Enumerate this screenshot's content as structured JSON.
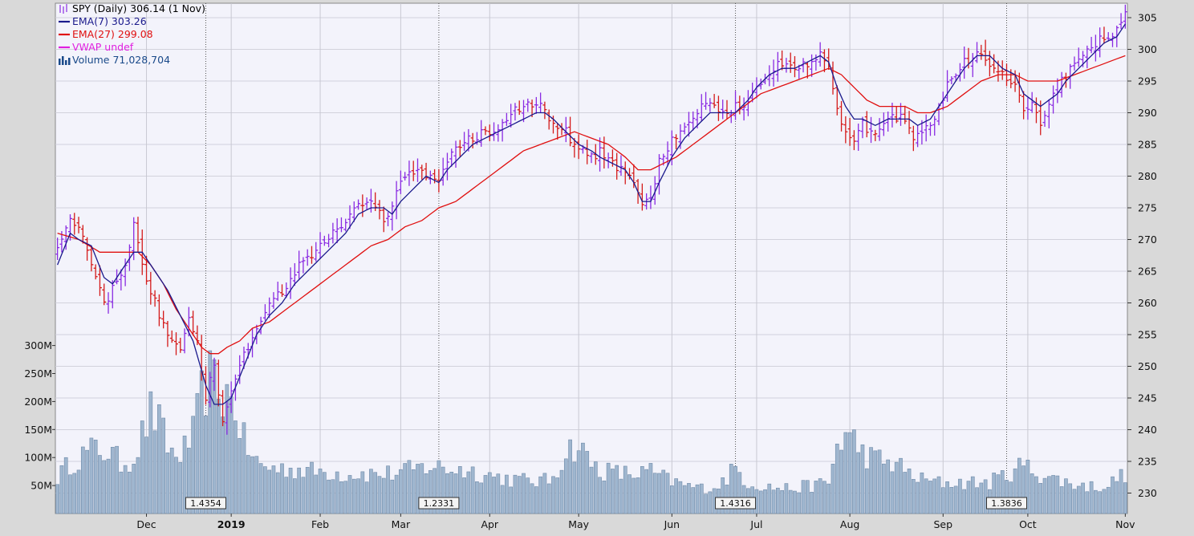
{
  "chart_data": {
    "type": "ohlc",
    "legend": [
      {
        "label": "SPY (Daily) 306.14 (1 Nov)",
        "color": "#000000",
        "icon": "ohlc-bars-icon"
      },
      {
        "label": "EMA(7) 303.26",
        "color": "#1a1a8c",
        "icon": "line-icon"
      },
      {
        "label": "EMA(27) 299.08",
        "color": "#e01010",
        "icon": "line-icon"
      },
      {
        "label": "VWAP undef",
        "color": "#e020e0",
        "icon": "line-icon"
      },
      {
        "label": "Volume 71,028,704",
        "color": "#1a4a8a",
        "icon": "volume-bars-icon"
      }
    ],
    "price_axis": {
      "ticks": [
        "305",
        "300",
        "295",
        "290",
        "285",
        "280",
        "275",
        "270",
        "265",
        "260",
        "255",
        "250",
        "245",
        "240",
        "235",
        "230"
      ],
      "range": [
        229,
        307
      ]
    },
    "volume_axis": {
      "ticks": [
        "300M",
        "250M",
        "200M",
        "150M",
        "100M",
        "50M"
      ],
      "range": [
        0,
        335
      ]
    },
    "x_axis": {
      "labels": [
        {
          "text": "Dec",
          "i": 21,
          "bold": false
        },
        {
          "text": "2019",
          "i": 41,
          "bold": true
        },
        {
          "text": "Feb",
          "i": 62,
          "bold": false
        },
        {
          "text": "Mar",
          "i": 81,
          "bold": false
        },
        {
          "text": "Apr",
          "i": 102,
          "bold": false
        },
        {
          "text": "May",
          "i": 123,
          "bold": false
        },
        {
          "text": "Jun",
          "i": 145,
          "bold": false
        },
        {
          "text": "Jul",
          "i": 165,
          "bold": false
        },
        {
          "text": "Aug",
          "i": 187,
          "bold": false
        },
        {
          "text": "Sep",
          "i": 209,
          "bold": false
        },
        {
          "text": "Oct",
          "i": 229,
          "bold": false
        },
        {
          "text": "Nov",
          "i": 252,
          "bold": false
        }
      ],
      "grid_i": [
        21,
        41,
        62,
        81,
        102,
        123,
        145,
        165,
        187,
        209,
        229
      ],
      "total_bars": 253
    },
    "annotations": [
      {
        "label": "1.4354",
        "i": 35
      },
      {
        "label": "1.2331",
        "i": 90
      },
      {
        "label": "1.4316",
        "i": 160
      },
      {
        "label": "1.3836",
        "i": 224
      }
    ],
    "close_anchors": [
      [
        0,
        268
      ],
      [
        3,
        274
      ],
      [
        5,
        272
      ],
      [
        8,
        266
      ],
      [
        11,
        260
      ],
      [
        15,
        264
      ],
      [
        18,
        272
      ],
      [
        20,
        266
      ],
      [
        23,
        260
      ],
      [
        26,
        255
      ],
      [
        29,
        252
      ],
      [
        31,
        258
      ],
      [
        33,
        254
      ],
      [
        35,
        245
      ],
      [
        37,
        250
      ],
      [
        39,
        242
      ],
      [
        41,
        246
      ],
      [
        44,
        252
      ],
      [
        47,
        256
      ],
      [
        50,
        260
      ],
      [
        53,
        262
      ],
      [
        56,
        265
      ],
      [
        59,
        267
      ],
      [
        62,
        269
      ],
      [
        65,
        271
      ],
      [
        68,
        273
      ],
      [
        71,
        275
      ],
      [
        74,
        276
      ],
      [
        77,
        273
      ],
      [
        79,
        275
      ],
      [
        81,
        279
      ],
      [
        84,
        281
      ],
      [
        87,
        280
      ],
      [
        90,
        279
      ],
      [
        92,
        283
      ],
      [
        95,
        285
      ],
      [
        98,
        286
      ],
      [
        101,
        287
      ],
      [
        104,
        288
      ],
      [
        107,
        290
      ],
      [
        110,
        291
      ],
      [
        113,
        292
      ],
      [
        115,
        290
      ],
      [
        117,
        288
      ],
      [
        120,
        287
      ],
      [
        123,
        284
      ],
      [
        126,
        283
      ],
      [
        128,
        284
      ],
      [
        131,
        282
      ],
      [
        134,
        281
      ],
      [
        136,
        279
      ],
      [
        138,
        275
      ],
      [
        140,
        277
      ],
      [
        142,
        282
      ],
      [
        145,
        286
      ],
      [
        148,
        288
      ],
      [
        151,
        290
      ],
      [
        154,
        292
      ],
      [
        157,
        290
      ],
      [
        160,
        291
      ],
      [
        163,
        292
      ],
      [
        165,
        294
      ],
      [
        168,
        296
      ],
      [
        171,
        298
      ],
      [
        174,
        297
      ],
      [
        177,
        298
      ],
      [
        180,
        299
      ],
      [
        182,
        298
      ],
      [
        184,
        291
      ],
      [
        186,
        287
      ],
      [
        188,
        285
      ],
      [
        190,
        288
      ],
      [
        193,
        287
      ],
      [
        196,
        289
      ],
      [
        199,
        289
      ],
      [
        201,
        287
      ],
      [
        203,
        286
      ],
      [
        206,
        288
      ],
      [
        208,
        291
      ],
      [
        211,
        296
      ],
      [
        214,
        298
      ],
      [
        217,
        299
      ],
      [
        220,
        298
      ],
      [
        223,
        296
      ],
      [
        226,
        295
      ],
      [
        228,
        290
      ],
      [
        230,
        291
      ],
      [
        232,
        288
      ],
      [
        234,
        292
      ],
      [
        236,
        294
      ],
      [
        238,
        296
      ],
      [
        241,
        298
      ],
      [
        244,
        300
      ],
      [
        247,
        302
      ],
      [
        250,
        303
      ],
      [
        252,
        306
      ]
    ],
    "ema7_anchors": [
      [
        0,
        266
      ],
      [
        3,
        271
      ],
      [
        5,
        270
      ],
      [
        8,
        269
      ],
      [
        11,
        264
      ],
      [
        13,
        263
      ],
      [
        15,
        265
      ],
      [
        18,
        268
      ],
      [
        20,
        268
      ],
      [
        23,
        265
      ],
      [
        26,
        262
      ],
      [
        29,
        258
      ],
      [
        32,
        254
      ],
      [
        35,
        247
      ],
      [
        37,
        244
      ],
      [
        39,
        244
      ],
      [
        41,
        245
      ],
      [
        44,
        250
      ],
      [
        47,
        255
      ],
      [
        50,
        258
      ],
      [
        53,
        260
      ],
      [
        56,
        263
      ],
      [
        59,
        265
      ],
      [
        62,
        267
      ],
      [
        65,
        269
      ],
      [
        68,
        271
      ],
      [
        71,
        274
      ],
      [
        74,
        275
      ],
      [
        77,
        275
      ],
      [
        79,
        274
      ],
      [
        81,
        276
      ],
      [
        84,
        278
      ],
      [
        87,
        280
      ],
      [
        90,
        279
      ],
      [
        92,
        281
      ],
      [
        95,
        283
      ],
      [
        98,
        285
      ],
      [
        101,
        286
      ],
      [
        104,
        287
      ],
      [
        107,
        288
      ],
      [
        110,
        289
      ],
      [
        113,
        290
      ],
      [
        115,
        290
      ],
      [
        117,
        289
      ],
      [
        120,
        287
      ],
      [
        123,
        285
      ],
      [
        126,
        284
      ],
      [
        128,
        283
      ],
      [
        131,
        282
      ],
      [
        134,
        281
      ],
      [
        136,
        279
      ],
      [
        138,
        276
      ],
      [
        140,
        276
      ],
      [
        142,
        279
      ],
      [
        145,
        283
      ],
      [
        148,
        286
      ],
      [
        151,
        288
      ],
      [
        154,
        290
      ],
      [
        157,
        290
      ],
      [
        160,
        290
      ],
      [
        163,
        292
      ],
      [
        165,
        294
      ],
      [
        168,
        296
      ],
      [
        171,
        297
      ],
      [
        174,
        297
      ],
      [
        177,
        298
      ],
      [
        180,
        299
      ],
      [
        182,
        298
      ],
      [
        184,
        294
      ],
      [
        186,
        291
      ],
      [
        188,
        289
      ],
      [
        190,
        289
      ],
      [
        193,
        288
      ],
      [
        196,
        289
      ],
      [
        199,
        289
      ],
      [
        201,
        289
      ],
      [
        203,
        288
      ],
      [
        206,
        289
      ],
      [
        208,
        291
      ],
      [
        211,
        294
      ],
      [
        214,
        297
      ],
      [
        217,
        299
      ],
      [
        220,
        299
      ],
      [
        223,
        297
      ],
      [
        226,
        296
      ],
      [
        228,
        293
      ],
      [
        230,
        292
      ],
      [
        232,
        291
      ],
      [
        234,
        292
      ],
      [
        236,
        293
      ],
      [
        238,
        295
      ],
      [
        241,
        297
      ],
      [
        244,
        299
      ],
      [
        247,
        301
      ],
      [
        250,
        302
      ],
      [
        252,
        304
      ]
    ],
    "ema27_anchors": [
      [
        0,
        271
      ],
      [
        5,
        270
      ],
      [
        10,
        268
      ],
      [
        15,
        268
      ],
      [
        19,
        268
      ],
      [
        22,
        266
      ],
      [
        25,
        263
      ],
      [
        28,
        259
      ],
      [
        30,
        257
      ],
      [
        32,
        255
      ],
      [
        34,
        253
      ],
      [
        36,
        252
      ],
      [
        38,
        252
      ],
      [
        40,
        253
      ],
      [
        43,
        254
      ],
      [
        46,
        256
      ],
      [
        50,
        257
      ],
      [
        54,
        259
      ],
      [
        58,
        261
      ],
      [
        62,
        263
      ],
      [
        66,
        265
      ],
      [
        70,
        267
      ],
      [
        74,
        269
      ],
      [
        78,
        270
      ],
      [
        82,
        272
      ],
      [
        86,
        273
      ],
      [
        90,
        275
      ],
      [
        94,
        276
      ],
      [
        98,
        278
      ],
      [
        102,
        280
      ],
      [
        106,
        282
      ],
      [
        110,
        284
      ],
      [
        114,
        285
      ],
      [
        118,
        286
      ],
      [
        122,
        287
      ],
      [
        126,
        286
      ],
      [
        130,
        285
      ],
      [
        134,
        283
      ],
      [
        137,
        281
      ],
      [
        140,
        281
      ],
      [
        143,
        282
      ],
      [
        146,
        283
      ],
      [
        150,
        285
      ],
      [
        154,
        287
      ],
      [
        158,
        289
      ],
      [
        162,
        291
      ],
      [
        166,
        293
      ],
      [
        170,
        294
      ],
      [
        174,
        295
      ],
      [
        178,
        296
      ],
      [
        182,
        297
      ],
      [
        185,
        296
      ],
      [
        188,
        294
      ],
      [
        191,
        292
      ],
      [
        194,
        291
      ],
      [
        197,
        291
      ],
      [
        200,
        291
      ],
      [
        203,
        290
      ],
      [
        206,
        290
      ],
      [
        210,
        291
      ],
      [
        214,
        293
      ],
      [
        218,
        295
      ],
      [
        222,
        296
      ],
      [
        226,
        296
      ],
      [
        229,
        295
      ],
      [
        232,
        295
      ],
      [
        236,
        295
      ],
      [
        240,
        296
      ],
      [
        244,
        297
      ],
      [
        248,
        298
      ],
      [
        252,
        299
      ]
    ],
    "volume_anchors": [
      [
        0,
        65
      ],
      [
        3,
        90
      ],
      [
        6,
        105
      ],
      [
        9,
        115
      ],
      [
        12,
        110
      ],
      [
        15,
        90
      ],
      [
        18,
        100
      ],
      [
        20,
        140
      ],
      [
        22,
        180
      ],
      [
        24,
        160
      ],
      [
        26,
        120
      ],
      [
        28,
        100
      ],
      [
        30,
        115
      ],
      [
        32,
        140
      ],
      [
        34,
        210
      ],
      [
        36,
        240
      ],
      [
        38,
        220
      ],
      [
        40,
        210
      ],
      [
        42,
        190
      ],
      [
        44,
        130
      ],
      [
        46,
        100
      ],
      [
        48,
        85
      ],
      [
        52,
        80
      ],
      [
        56,
        80
      ],
      [
        60,
        75
      ],
      [
        64,
        75
      ],
      [
        68,
        70
      ],
      [
        72,
        72
      ],
      [
        76,
        70
      ],
      [
        80,
        72
      ],
      [
        84,
        78
      ],
      [
        88,
        85
      ],
      [
        92,
        80
      ],
      [
        96,
        78
      ],
      [
        100,
        72
      ],
      [
        104,
        65
      ],
      [
        108,
        60
      ],
      [
        112,
        58
      ],
      [
        116,
        58
      ],
      [
        118,
        80
      ],
      [
        120,
        110
      ],
      [
        122,
        120
      ],
      [
        124,
        110
      ],
      [
        126,
        90
      ],
      [
        128,
        78
      ],
      [
        132,
        72
      ],
      [
        136,
        70
      ],
      [
        140,
        75
      ],
      [
        144,
        60
      ],
      [
        148,
        50
      ],
      [
        152,
        45
      ],
      [
        156,
        50
      ],
      [
        160,
        80
      ],
      [
        163,
        55
      ],
      [
        166,
        50
      ],
      [
        170,
        45
      ],
      [
        174,
        45
      ],
      [
        178,
        50
      ],
      [
        182,
        55
      ],
      [
        184,
        120
      ],
      [
        186,
        140
      ],
      [
        188,
        130
      ],
      [
        190,
        110
      ],
      [
        192,
        100
      ],
      [
        194,
        95
      ],
      [
        196,
        90
      ],
      [
        198,
        90
      ],
      [
        200,
        75
      ],
      [
        204,
        60
      ],
      [
        208,
        55
      ],
      [
        212,
        55
      ],
      [
        216,
        55
      ],
      [
        220,
        55
      ],
      [
        224,
        70
      ],
      [
        226,
        80
      ],
      [
        228,
        85
      ],
      [
        230,
        78
      ],
      [
        232,
        70
      ],
      [
        236,
        60
      ],
      [
        240,
        52
      ],
      [
        244,
        48
      ],
      [
        248,
        50
      ],
      [
        250,
        62
      ],
      [
        252,
        72
      ]
    ]
  }
}
